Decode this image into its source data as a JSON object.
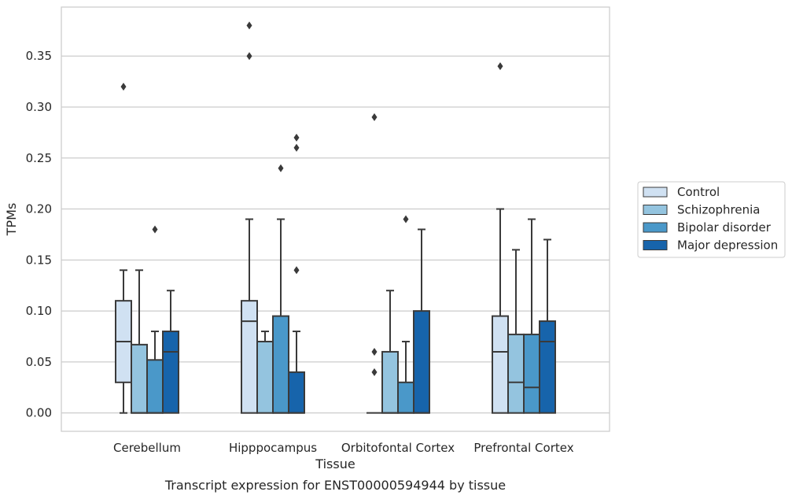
{
  "caption": "Transcript expression for ENST00000594944 by tissue",
  "chart_data": {
    "type": "box",
    "xlabel": "Tissue",
    "ylabel": "TPMs",
    "ylim": [
      -0.018,
      0.398
    ],
    "yticks": [
      0.0,
      0.05,
      0.1,
      0.15,
      0.2,
      0.25,
      0.3,
      0.35
    ],
    "ytick_labels": [
      "0.00",
      "0.05",
      "0.10",
      "0.15",
      "0.20",
      "0.25",
      "0.30",
      "0.35"
    ],
    "grid": true,
    "legend_position": "right",
    "categories": [
      "Cerebellum",
      "Hipppocampus",
      "Orbitofontal Cortex",
      "Prefrontal Cortex"
    ],
    "series": [
      {
        "name": "Control",
        "color": "#d0e1f2",
        "boxes": [
          {
            "whisker_low": 0.0,
            "q1": 0.03,
            "median": 0.07,
            "q3": 0.11,
            "whisker_high": 0.14,
            "outliers": [
              0.32
            ]
          },
          {
            "whisker_low": 0.0,
            "q1": 0.0,
            "median": 0.09,
            "q3": 0.11,
            "whisker_high": 0.19,
            "outliers": [
              0.35,
              0.38
            ]
          },
          {
            "whisker_low": 0.0,
            "q1": 0.0,
            "median": 0.0,
            "q3": 0.0,
            "whisker_high": 0.0,
            "outliers": [
              0.04,
              0.06,
              0.29
            ]
          },
          {
            "whisker_low": 0.0,
            "q1": 0.0,
            "median": 0.06,
            "q3": 0.095,
            "whisker_high": 0.2,
            "outliers": [
              0.34
            ]
          }
        ]
      },
      {
        "name": "Schizophrenia",
        "color": "#94c4df",
        "boxes": [
          {
            "whisker_low": 0.0,
            "q1": 0.0,
            "median": 0.0,
            "q3": 0.067,
            "whisker_high": 0.14,
            "outliers": []
          },
          {
            "whisker_low": 0.0,
            "q1": 0.0,
            "median": 0.07,
            "q3": 0.07,
            "whisker_high": 0.08,
            "outliers": []
          },
          {
            "whisker_low": 0.0,
            "q1": 0.0,
            "median": 0.0,
            "q3": 0.06,
            "whisker_high": 0.12,
            "outliers": []
          },
          {
            "whisker_low": 0.0,
            "q1": 0.0,
            "median": 0.03,
            "q3": 0.077,
            "whisker_high": 0.16,
            "outliers": []
          }
        ]
      },
      {
        "name": "Bipolar disorder",
        "color": "#4a98c9",
        "boxes": [
          {
            "whisker_low": 0.0,
            "q1": 0.0,
            "median": 0.0,
            "q3": 0.052,
            "whisker_high": 0.08,
            "outliers": [
              0.18
            ]
          },
          {
            "whisker_low": 0.0,
            "q1": 0.0,
            "median": 0.0,
            "q3": 0.095,
            "whisker_high": 0.19,
            "outliers": [
              0.24
            ]
          },
          {
            "whisker_low": 0.0,
            "q1": 0.0,
            "median": 0.0,
            "q3": 0.03,
            "whisker_high": 0.07,
            "outliers": [
              0.19
            ]
          },
          {
            "whisker_low": 0.0,
            "q1": 0.0,
            "median": 0.025,
            "q3": 0.077,
            "whisker_high": 0.19,
            "outliers": []
          }
        ]
      },
      {
        "name": "Major depression",
        "color": "#1764ab",
        "boxes": [
          {
            "whisker_low": 0.0,
            "q1": 0.0,
            "median": 0.06,
            "q3": 0.08,
            "whisker_high": 0.12,
            "outliers": []
          },
          {
            "whisker_low": 0.0,
            "q1": 0.0,
            "median": 0.0,
            "q3": 0.04,
            "whisker_high": 0.08,
            "outliers": [
              0.14,
              0.26,
              0.27
            ]
          },
          {
            "whisker_low": 0.0,
            "q1": 0.0,
            "median": 0.0,
            "q3": 0.1,
            "whisker_high": 0.18,
            "outliers": []
          },
          {
            "whisker_low": 0.0,
            "q1": 0.0,
            "median": 0.07,
            "q3": 0.09,
            "whisker_high": 0.17,
            "outliers": []
          }
        ]
      }
    ]
  }
}
